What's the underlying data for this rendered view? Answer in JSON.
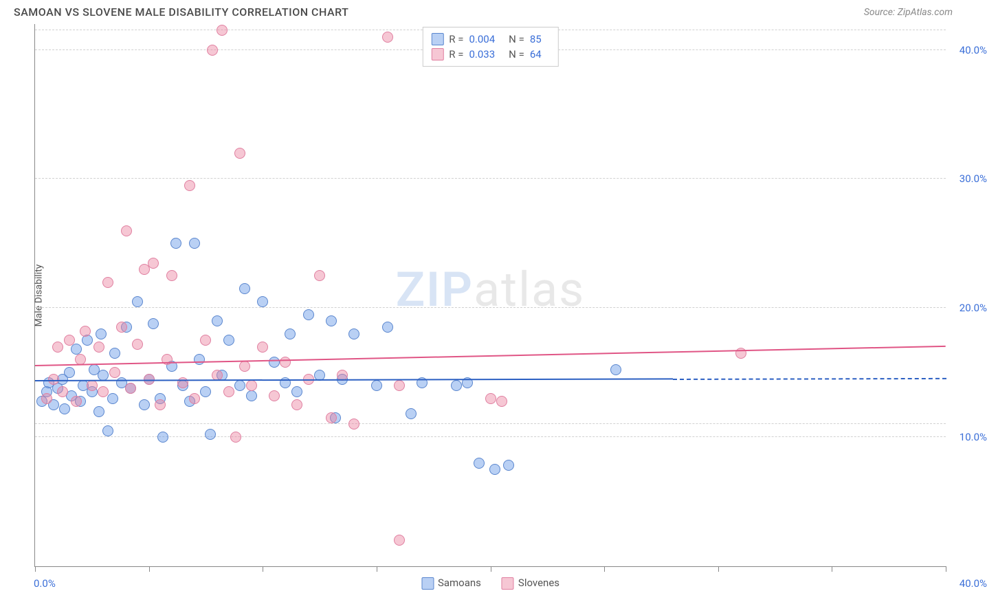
{
  "chart": {
    "type": "scatter",
    "title": "SAMOAN VS SLOVENE MALE DISABILITY CORRELATION CHART",
    "source": "Source: ZipAtlas.com",
    "ylabel": "Male Disability",
    "watermark": "ZIPatlas",
    "background_color": "#ffffff",
    "grid_color": "#d0d0d0",
    "axis_color": "#888888",
    "tick_label_color": "#3b6fd8",
    "title_color": "#4a4a4a",
    "title_fontsize": 16,
    "label_fontsize": 14,
    "tick_fontsize": 15,
    "xlim": [
      0,
      40
    ],
    "ylim": [
      0,
      42
    ],
    "xticks": [
      0,
      5,
      10,
      15,
      20,
      25,
      30,
      35,
      40
    ],
    "yticks": [
      10,
      20,
      30,
      40
    ],
    "ytick_labels": [
      "10.0%",
      "20.0%",
      "30.0%",
      "40.0%"
    ],
    "x_start_label": "0.0%",
    "x_end_label": "40.0%",
    "point_radius": 8,
    "point_opacity": 0.55,
    "series": [
      {
        "name": "Samoans",
        "R": "0.004",
        "N": "85",
        "color_fill": "rgba(100,150,230,0.45)",
        "color_stroke": "#5a86ce",
        "trend": {
          "color": "#2b5fc2",
          "y_at_xmin": 14.3,
          "y_at_xmax": 14.5,
          "solid_until_x": 28,
          "dashed": true
        },
        "points": [
          [
            0.3,
            12.8
          ],
          [
            0.5,
            13.5
          ],
          [
            0.6,
            14.2
          ],
          [
            0.8,
            12.5
          ],
          [
            1.0,
            13.8
          ],
          [
            1.2,
            14.5
          ],
          [
            1.3,
            12.2
          ],
          [
            1.5,
            15.0
          ],
          [
            1.6,
            13.2
          ],
          [
            1.8,
            16.8
          ],
          [
            2.0,
            12.8
          ],
          [
            2.1,
            14.0
          ],
          [
            2.3,
            17.5
          ],
          [
            2.5,
            13.5
          ],
          [
            2.6,
            15.2
          ],
          [
            2.8,
            12.0
          ],
          [
            2.9,
            18.0
          ],
          [
            3.0,
            14.8
          ],
          [
            3.2,
            10.5
          ],
          [
            3.4,
            13.0
          ],
          [
            3.5,
            16.5
          ],
          [
            3.8,
            14.2
          ],
          [
            4.0,
            18.5
          ],
          [
            4.2,
            13.8
          ],
          [
            4.5,
            20.5
          ],
          [
            4.8,
            12.5
          ],
          [
            5.0,
            14.5
          ],
          [
            5.2,
            18.8
          ],
          [
            5.5,
            13.0
          ],
          [
            5.6,
            10.0
          ],
          [
            6.0,
            15.5
          ],
          [
            6.2,
            25.0
          ],
          [
            6.5,
            14.0
          ],
          [
            6.8,
            12.8
          ],
          [
            7.0,
            25.0
          ],
          [
            7.2,
            16.0
          ],
          [
            7.5,
            13.5
          ],
          [
            7.7,
            10.2
          ],
          [
            8.0,
            19.0
          ],
          [
            8.2,
            14.8
          ],
          [
            8.5,
            17.5
          ],
          [
            9.0,
            14.0
          ],
          [
            9.2,
            21.5
          ],
          [
            9.5,
            13.2
          ],
          [
            10.0,
            20.5
          ],
          [
            10.5,
            15.8
          ],
          [
            11.0,
            14.2
          ],
          [
            11.2,
            18.0
          ],
          [
            11.5,
            13.5
          ],
          [
            12.0,
            19.5
          ],
          [
            12.5,
            14.8
          ],
          [
            13.0,
            19.0
          ],
          [
            13.2,
            11.5
          ],
          [
            13.5,
            14.5
          ],
          [
            14.0,
            18.0
          ],
          [
            15.0,
            14.0
          ],
          [
            15.5,
            18.5
          ],
          [
            16.5,
            11.8
          ],
          [
            17.0,
            14.2
          ],
          [
            18.5,
            14.0
          ],
          [
            19.0,
            14.2
          ],
          [
            19.5,
            8.0
          ],
          [
            20.2,
            7.5
          ],
          [
            20.8,
            7.8
          ],
          [
            25.5,
            15.2
          ]
        ]
      },
      {
        "name": "Slovenes",
        "R": "0.033",
        "N": "64",
        "color_fill": "rgba(235,130,160,0.45)",
        "color_stroke": "#e07fa0",
        "trend": {
          "color": "#e05585",
          "y_at_xmin": 15.5,
          "y_at_xmax": 17.0,
          "solid_until_x": 40,
          "dashed": false
        },
        "points": [
          [
            0.5,
            13.0
          ],
          [
            0.8,
            14.5
          ],
          [
            1.0,
            17.0
          ],
          [
            1.2,
            13.5
          ],
          [
            1.5,
            17.5
          ],
          [
            1.8,
            12.8
          ],
          [
            2.0,
            16.0
          ],
          [
            2.2,
            18.2
          ],
          [
            2.5,
            14.0
          ],
          [
            2.8,
            17.0
          ],
          [
            3.0,
            13.5
          ],
          [
            3.2,
            22.0
          ],
          [
            3.5,
            15.0
          ],
          [
            3.8,
            18.5
          ],
          [
            4.0,
            26.0
          ],
          [
            4.2,
            13.8
          ],
          [
            4.5,
            17.2
          ],
          [
            4.8,
            23.0
          ],
          [
            5.0,
            14.5
          ],
          [
            5.2,
            23.5
          ],
          [
            5.5,
            12.5
          ],
          [
            5.8,
            16.0
          ],
          [
            6.0,
            22.5
          ],
          [
            6.5,
            14.2
          ],
          [
            6.8,
            29.5
          ],
          [
            7.0,
            13.0
          ],
          [
            7.5,
            17.5
          ],
          [
            7.8,
            40.0
          ],
          [
            8.0,
            14.8
          ],
          [
            8.2,
            41.5
          ],
          [
            8.5,
            13.5
          ],
          [
            8.8,
            10.0
          ],
          [
            9.0,
            32.0
          ],
          [
            9.2,
            15.5
          ],
          [
            9.5,
            14.0
          ],
          [
            10.0,
            17.0
          ],
          [
            10.5,
            13.2
          ],
          [
            11.0,
            15.8
          ],
          [
            11.5,
            12.5
          ],
          [
            12.0,
            14.5
          ],
          [
            12.5,
            22.5
          ],
          [
            13.0,
            11.5
          ],
          [
            13.5,
            14.8
          ],
          [
            14.0,
            11.0
          ],
          [
            15.5,
            41.0
          ],
          [
            16.0,
            14.0
          ],
          [
            20.0,
            13.0
          ],
          [
            20.5,
            12.8
          ],
          [
            31.0,
            16.5
          ],
          [
            16.0,
            2.0
          ]
        ]
      }
    ],
    "legend_top": {
      "rows": [
        {
          "swatch_fill": "rgba(100,150,230,0.45)",
          "swatch_stroke": "#5a86ce",
          "R_label": "R =",
          "R_val": "0.004",
          "N_label": "N =",
          "N_val": "85"
        },
        {
          "swatch_fill": "rgba(235,130,160,0.45)",
          "swatch_stroke": "#e07fa0",
          "R_label": "R =",
          "R_val": "0.033",
          "N_label": "N =",
          "N_val": "64"
        }
      ]
    },
    "legend_bottom": {
      "items": [
        {
          "swatch_fill": "rgba(100,150,230,0.45)",
          "swatch_stroke": "#5a86ce",
          "label": "Samoans"
        },
        {
          "swatch_fill": "rgba(235,130,160,0.45)",
          "swatch_stroke": "#e07fa0",
          "label": "Slovenes"
        }
      ]
    }
  }
}
